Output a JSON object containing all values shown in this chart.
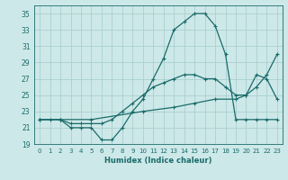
{
  "xlabel": "Humidex (Indice chaleur)",
  "xlim": [
    -0.5,
    23.5
  ],
  "ylim": [
    19,
    36
  ],
  "yticks": [
    19,
    21,
    23,
    25,
    27,
    29,
    31,
    33,
    35
  ],
  "xticks": [
    0,
    1,
    2,
    3,
    4,
    5,
    6,
    7,
    8,
    9,
    10,
    11,
    12,
    13,
    14,
    15,
    16,
    17,
    18,
    19,
    20,
    21,
    22,
    23
  ],
  "bg_color": "#cde8e8",
  "grid_color": "#aacfcf",
  "line_color": "#1a6b6b",
  "line1_x": [
    0,
    1,
    2,
    3,
    4,
    5,
    6,
    7,
    8,
    9,
    10,
    11,
    12,
    13,
    14,
    15,
    16,
    17,
    18,
    19,
    20,
    21,
    22,
    23
  ],
  "line1_y": [
    22,
    22,
    22,
    21,
    21,
    21,
    19.5,
    19.5,
    21,
    23,
    24.5,
    27,
    29.5,
    33,
    34,
    35,
    35,
    33.5,
    30,
    22,
    22,
    22,
    22,
    22
  ],
  "line2_x": [
    0,
    2,
    3,
    4,
    5,
    6,
    7,
    8,
    9,
    10,
    11,
    12,
    13,
    14,
    15,
    16,
    17,
    18,
    19,
    20,
    21,
    22,
    23
  ],
  "line2_y": [
    22,
    22,
    21.5,
    21.5,
    21.5,
    21.5,
    22,
    23,
    24,
    25,
    26,
    26.5,
    27,
    27.5,
    27.5,
    27,
    27,
    26,
    25,
    25,
    27.5,
    27,
    24.5
  ],
  "line3_x": [
    0,
    2,
    5,
    10,
    13,
    15,
    17,
    19,
    20,
    21,
    22,
    23
  ],
  "line3_y": [
    22,
    22,
    22,
    23,
    23.5,
    24,
    24.5,
    24.5,
    25,
    26,
    27.5,
    30
  ]
}
